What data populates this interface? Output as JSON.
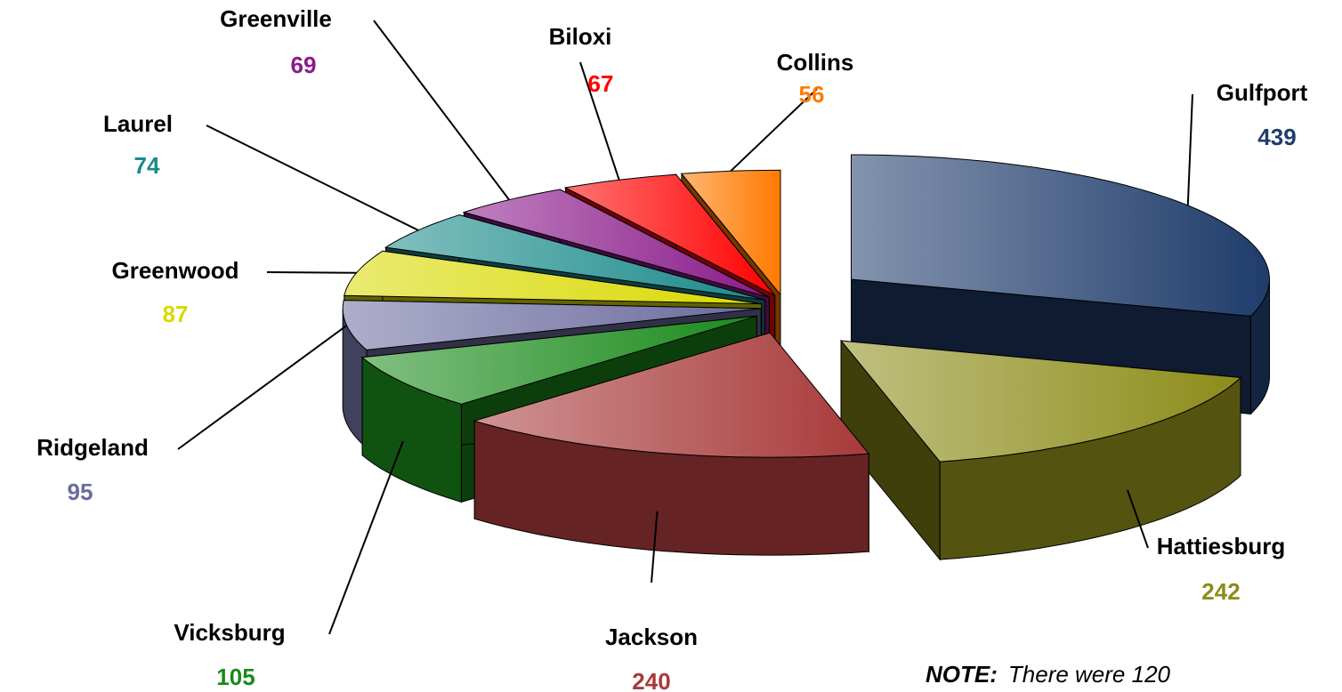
{
  "chart_data": {
    "type": "pie3d",
    "categories": [
      "Gulfport",
      "Hattiesburg",
      "Jackson",
      "Vicksburg",
      "Ridgeland",
      "Greenwood",
      "Laurel",
      "Greenville",
      "Biloxi",
      "Collins"
    ],
    "values": [
      439,
      242,
      240,
      105,
      95,
      87,
      74,
      69,
      67,
      56
    ],
    "colors": [
      "#1f3c6b",
      "#8c8c1a",
      "#a83a3a",
      "#1a8a1a",
      "#6b6b9e",
      "#d9d900",
      "#1a8a8a",
      "#8a1a8a",
      "#ff0000",
      "#ff7a00"
    ],
    "note_label": "NOTE:",
    "note_text": "There were 120"
  }
}
